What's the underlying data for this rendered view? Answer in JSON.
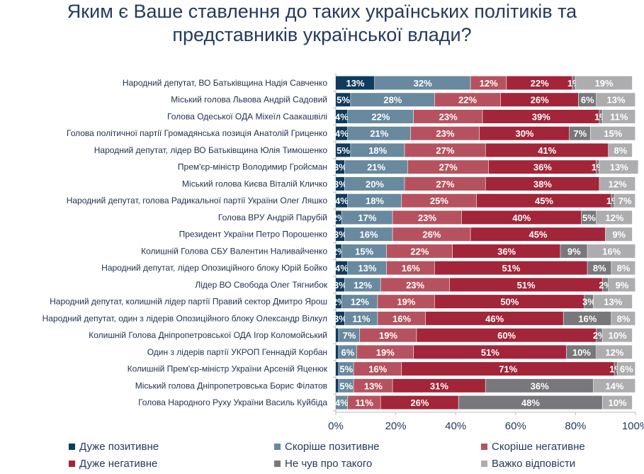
{
  "title_line1": "Яким є Ваше ставлення до таких українських політиків та",
  "title_line2": "представників української влади?",
  "chart_data": {
    "type": "bar",
    "orientation": "horizontal",
    "stacked": true,
    "title": "Яким є Ваше ставлення до таких українських політиків та представників української влади?",
    "xlim": [
      0,
      100
    ],
    "xticks": [
      "0%",
      "20%",
      "40%",
      "60%",
      "80%",
      "100%"
    ],
    "legend_position": "bottom",
    "categories": [
      "Народний депутат, ВО Батьківщина Надія Савченко",
      "Міський голова Львова Андрій Садовий",
      "Голова Одеської ОДА Міхеїл Саакашвілі",
      "Голова політичної партії Громадянська позиція Анатолій Гриценко",
      "Народний депутат, лідер ВО Батьківщина Юлія Тимошенко",
      "Прем'єр-міністр Володимир Гройсман",
      "Міський голова Києва Віталій Кличко",
      "Народний депутат, голова Радикальної партії України Олег Ляшко",
      "Голова ВРУ Андрій Парубій",
      "Президент України Петро Порошенко",
      "Колишній Голова СБУ Валентин Наливайченко",
      "Народний депутат, лідер Опозиційного блоку Юрій Бойко",
      "Лідер ВО Свобода Олег Тягнибок",
      "Народний депутат, колишній лідер партії Правий сектор Дмитро Ярош",
      "Народний депутат, один з лідерів Опозиційного блоку Олександр Вілкул",
      "Колишній Голова Дніпропетровської ОДА Ігор Коломойський",
      "Один з лідерів партії УКРОП Геннадій Корбан",
      "Колишній Прем'єр-міністр України Арсеній Яценюк",
      "Міський голова Дніпропетровська Борис Філатов",
      "Голова Народного Руху України Василь Куйбіда"
    ],
    "series": [
      {
        "name": "Дуже позитивне",
        "color": "#0f3b5e",
        "values": [
          13,
          5,
          4,
          4,
          5,
          3,
          3,
          4,
          2,
          3,
          2,
          4,
          3,
          2,
          3,
          1,
          1,
          1,
          1,
          0
        ]
      },
      {
        "name": "Скоріше позитивне",
        "color": "#68899e",
        "values": [
          32,
          28,
          22,
          21,
          18,
          21,
          20,
          18,
          17,
          16,
          15,
          13,
          12,
          12,
          11,
          7,
          6,
          5,
          5,
          4
        ]
      },
      {
        "name": "Скоріше негативне",
        "color": "#b6525f",
        "values": [
          12,
          22,
          23,
          23,
          27,
          27,
          27,
          25,
          23,
          26,
          22,
          16,
          23,
          19,
          16,
          19,
          19,
          16,
          13,
          11
        ]
      },
      {
        "name": "Дуже негативне",
        "color": "#a22539",
        "values": [
          22,
          26,
          39,
          30,
          41,
          36,
          38,
          45,
          40,
          45,
          36,
          51,
          51,
          50,
          46,
          60,
          51,
          71,
          31,
          26
        ]
      },
      {
        "name": "Не чув про такого",
        "color": "#78787c",
        "values": [
          1,
          6,
          1,
          7,
          0,
          1,
          0,
          1,
          5,
          0,
          9,
          8,
          2,
          3,
          16,
          2,
          10,
          1,
          36,
          48
        ]
      },
      {
        "name": "Важко відповісти",
        "color": "#adadb0",
        "values": [
          19,
          13,
          11,
          15,
          8,
          13,
          12,
          7,
          12,
          9,
          16,
          8,
          9,
          13,
          8,
          10,
          12,
          6,
          14,
          10
        ]
      }
    ]
  }
}
